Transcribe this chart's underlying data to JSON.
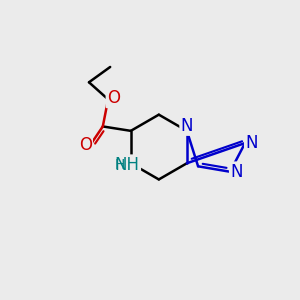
{
  "bg_color": "#ebebeb",
  "bond_color": "#000000",
  "aromatic_color": "#0000cc",
  "O_color": "#cc0000",
  "NH_color": "#008080",
  "bond_width": 1.8,
  "font_size": 12,
  "fig_width": 3.0,
  "fig_height": 3.0,
  "dpi": 100,
  "xlim": [
    0,
    10
  ],
  "ylim": [
    0,
    10
  ]
}
